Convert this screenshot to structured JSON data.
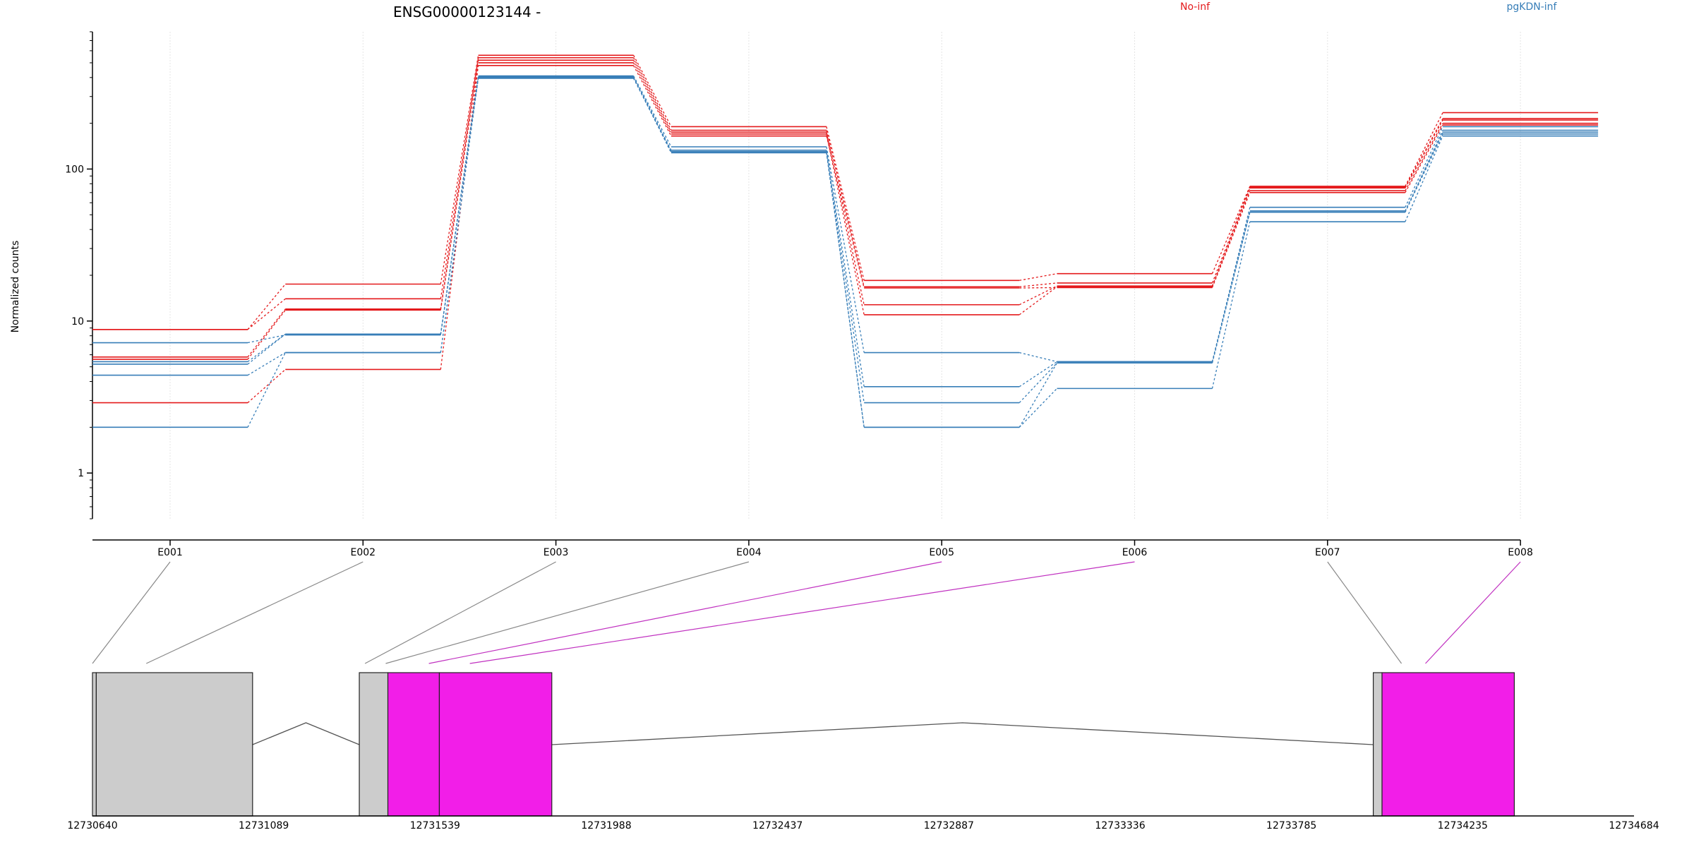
{
  "chart_data": {
    "type": "line",
    "title": "ENSG00000123144 -",
    "ylabel": "Normalized counts",
    "y_scale": "log",
    "ylim": [
      0.5,
      800
    ],
    "y_ticks": [
      {
        "value": 1,
        "label": "1"
      },
      {
        "value": 10,
        "label": "10"
      },
      {
        "value": 100,
        "label": "100"
      }
    ],
    "legend": [
      {
        "name": "No-inf",
        "color": "#e41a1c"
      },
      {
        "name": "pgKDN-inf",
        "color": "#377eb8"
      }
    ],
    "categories": [
      "E001",
      "E002",
      "E003",
      "E004",
      "E005",
      "E006",
      "E007",
      "E008"
    ],
    "grid": "vertical",
    "series": [
      {
        "group": "No-inf",
        "values": [
          8.8,
          17.5,
          560,
          190,
          18.5,
          20.5,
          77,
          235
        ]
      },
      {
        "group": "No-inf",
        "values": [
          8.8,
          14,
          540,
          180,
          16.8,
          17.8,
          76,
          215
        ]
      },
      {
        "group": "No-inf",
        "values": [
          5.8,
          12,
          520,
          175,
          12.8,
          17,
          75,
          210
        ]
      },
      {
        "group": "No-inf",
        "values": [
          5.6,
          11.8,
          500,
          170,
          11,
          16.8,
          72,
          200
        ]
      },
      {
        "group": "No-inf",
        "values": [
          2.9,
          4.8,
          480,
          165,
          16.5,
          16.6,
          70,
          195
        ]
      },
      {
        "group": "pgKDN-inf",
        "values": [
          7.2,
          8.1,
          410,
          140,
          6.2,
          5.4,
          56,
          190
        ]
      },
      {
        "group": "pgKDN-inf",
        "values": [
          5.2,
          8.2,
          405,
          133,
          3.7,
          5.4,
          52,
          180
        ]
      },
      {
        "group": "pgKDN-inf",
        "values": [
          5.4,
          8.2,
          400,
          130,
          2.9,
          5.3,
          53,
          175
        ]
      },
      {
        "group": "pgKDN-inf",
        "values": [
          4.4,
          6.2,
          400,
          128,
          2.0,
          5.3,
          52,
          170
        ]
      },
      {
        "group": "pgKDN-inf",
        "values": [
          2.0,
          6.2,
          395,
          130,
          2.0,
          3.6,
          45,
          165
        ]
      }
    ],
    "exon_map_colors": [
      "gray",
      "gray",
      "gray",
      "gray",
      "magenta",
      "magenta",
      "gray",
      "magenta"
    ],
    "gene_model": {
      "genomic_range": [
        12730640,
        12734684
      ],
      "ticks": [
        "12730640",
        "12731089",
        "12731539",
        "12731988",
        "12732437",
        "12732887",
        "12733336",
        "12733785",
        "12734235",
        "12734684"
      ],
      "exons": [
        {
          "start": 12730640,
          "end": 12730650,
          "color": "gray"
        },
        {
          "start": 12730650,
          "end": 12731060,
          "color": "gray"
        },
        {
          "start": 12731340,
          "end": 12731415,
          "color": "gray"
        },
        {
          "start": 12731415,
          "end": 12731550,
          "color": "magenta"
        },
        {
          "start": 12731550,
          "end": 12731845,
          "color": "magenta"
        },
        {
          "start": 12734000,
          "end": 12734023,
          "color": "gray"
        },
        {
          "start": 12734023,
          "end": 12734370,
          "color": "magenta"
        }
      ],
      "introns": [
        {
          "from": 12731060,
          "to": 12731340
        },
        {
          "from": 12731845,
          "to": 12734000
        }
      ]
    },
    "colors": {
      "no_inf": "#e41a1c",
      "pgkdn_inf": "#377eb8",
      "magenta": "#f21ee8",
      "gray": "#cccccc",
      "grid": "#e4e4e4"
    }
  }
}
